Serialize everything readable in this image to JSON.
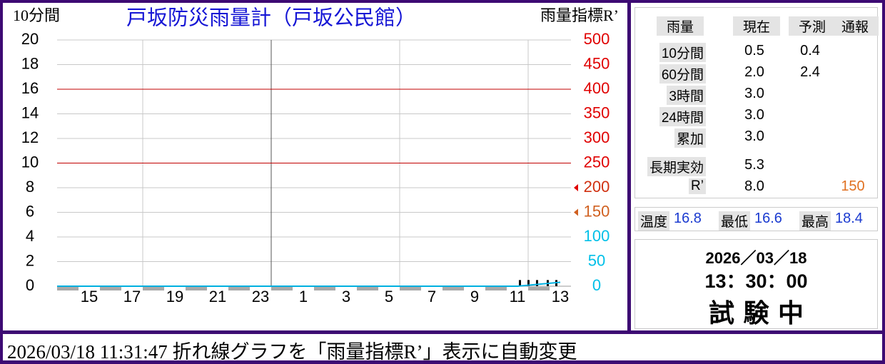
{
  "chart_data": {
    "type": "combo",
    "title": "戸坂防災雨量計（戸坂公民館）",
    "y_label": "10分間",
    "y2_label": "雨量指標R’",
    "xlim": [
      14,
      38
    ],
    "xticks": [
      {
        "value": 15,
        "label": "15"
      },
      {
        "value": 17,
        "label": "17"
      },
      {
        "value": 19,
        "label": "19"
      },
      {
        "value": 21,
        "label": "21"
      },
      {
        "value": 23,
        "label": "23"
      },
      {
        "value": 25,
        "label": "1"
      },
      {
        "value": 27,
        "label": "3"
      },
      {
        "value": 29,
        "label": "5"
      },
      {
        "value": 31,
        "label": "7"
      },
      {
        "value": 33,
        "label": "9"
      },
      {
        "value": 35,
        "label": "11"
      },
      {
        "value": 37,
        "label": "13"
      }
    ],
    "xgrid": [
      18,
      24,
      30,
      36
    ],
    "ylim": [
      0,
      20
    ],
    "yticks": [
      0,
      2,
      4,
      6,
      8,
      10,
      12,
      14,
      16,
      18,
      20
    ],
    "y2lim": [
      0,
      500
    ],
    "y2ticks": [
      0,
      50,
      100,
      150,
      200,
      250,
      300,
      350,
      400,
      450,
      500
    ],
    "y2tick_colors": [
      "#00c0e8",
      "#00c0e8",
      "#00c0e8",
      "#d06020",
      "#d03010",
      "#e00000",
      "#e00000",
      "#e00000",
      "#e00000",
      "#e00000",
      "#e00000"
    ],
    "thresholds": [
      250,
      400
    ],
    "threshold_color": "#c00000",
    "markers": [
      {
        "value": 200,
        "color": "#e00000"
      },
      {
        "value": 150,
        "color": "#d06020"
      }
    ],
    "series": [
      {
        "type": "bar",
        "color": "#000000",
        "x": [
          35.6,
          36.0,
          36.4,
          36.9,
          37.3
        ],
        "values": [
          0.5,
          0.5,
          0.5,
          0.5,
          0.5
        ]
      },
      {
        "type": "line",
        "axis": "y2",
        "color": "#00b0e0",
        "x": [
          14,
          35.5,
          36,
          36.5,
          37,
          37.5
        ],
        "values": [
          0,
          0,
          2,
          4,
          6,
          8
        ]
      }
    ]
  },
  "panel": {
    "headers": [
      "雨量",
      "現在",
      "予測",
      "通報"
    ],
    "rows": [
      {
        "label": "10分間",
        "current": "0.5",
        "forecast": "0.4"
      },
      {
        "label": "60分間",
        "current": "2.0",
        "forecast": "2.4"
      },
      {
        "label": "3時間",
        "current": "3.0"
      },
      {
        "label": "24時間",
        "current": "3.0"
      },
      {
        "label": "累加",
        "current": "3.0"
      },
      {
        "label": "長期実効",
        "current": "5.3"
      },
      {
        "label": "R’",
        "current": "8.0",
        "report": "150"
      }
    ],
    "temps": [
      {
        "label": "温度",
        "value": "16.8"
      },
      {
        "label": "最低",
        "value": "16.6"
      },
      {
        "label": "最高",
        "value": "18.4"
      }
    ],
    "date": "2026／03／18",
    "time": "13：30：00",
    "status": "試 験 中"
  },
  "status_bar": "2026/03/18 11:31:47 折れ線グラフを「雨量指標R’」表示に自動変更"
}
